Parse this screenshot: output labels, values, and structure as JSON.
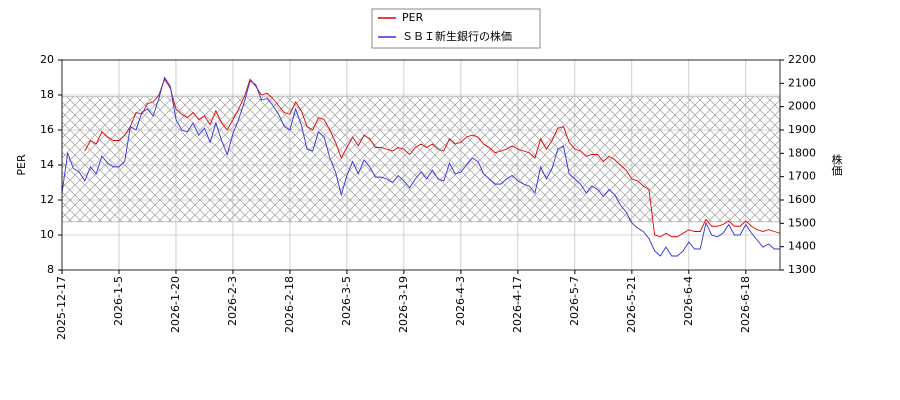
{
  "chart_data": {
    "type": "line",
    "ylabel": "PER",
    "y2label": "株価",
    "categories": [
      "2025-12-17",
      null,
      null,
      null,
      null,
      null,
      null,
      null,
      null,
      null,
      "2026-1-5",
      null,
      null,
      null,
      null,
      null,
      null,
      null,
      null,
      null,
      "2026-1-20",
      null,
      null,
      null,
      null,
      null,
      null,
      null,
      null,
      null,
      "2026-2-3",
      null,
      null,
      null,
      null,
      null,
      null,
      null,
      null,
      null,
      "2026-2-18",
      null,
      null,
      null,
      null,
      null,
      null,
      null,
      null,
      null,
      "2026-3-5",
      null,
      null,
      null,
      null,
      null,
      null,
      null,
      null,
      null,
      "2026-3-19",
      null,
      null,
      null,
      null,
      null,
      null,
      null,
      null,
      null,
      "2026-4-3",
      null,
      null,
      null,
      null,
      null,
      null,
      null,
      null,
      null,
      "2026-4-17",
      null,
      null,
      null,
      null,
      null,
      null,
      null,
      null,
      null,
      "2026-5-7",
      null,
      null,
      null,
      null,
      null,
      null,
      null,
      null,
      null,
      "2026-5-21",
      null,
      null,
      null,
      null,
      null,
      null,
      null,
      null,
      null,
      "2026-6-4",
      null,
      null,
      null,
      null,
      null,
      null,
      null,
      null,
      null,
      "2026-6-18",
      null,
      null,
      null,
      null,
      null,
      null
    ],
    "series": [
      {
        "name": "PER",
        "color": "#e00000",
        "axis": "y",
        "values": [
          null,
          null,
          null,
          null,
          14.8,
          15.4,
          15.2,
          15.9,
          15.6,
          15.4,
          15.4,
          15.7,
          16.2,
          17.0,
          16.9,
          17.5,
          17.6,
          18.0,
          18.9,
          18.4,
          17.2,
          16.9,
          16.7,
          17.0,
          16.6,
          16.8,
          16.3,
          17.1,
          16.4,
          16.0,
          16.6,
          17.2,
          17.9,
          18.9,
          18.5,
          18.0,
          18.1,
          17.8,
          17.4,
          17.0,
          16.9,
          17.6,
          17.1,
          16.2,
          16.0,
          16.7,
          16.6,
          16.0,
          15.3,
          14.4,
          15.0,
          15.6,
          15.1,
          15.7,
          15.5,
          15.0,
          15.0,
          14.9,
          14.8,
          15.0,
          14.9,
          14.6,
          15.0,
          15.2,
          15.0,
          15.2,
          14.9,
          14.8,
          15.5,
          15.2,
          15.3,
          15.6,
          15.7,
          15.6,
          15.2,
          15.0,
          14.7,
          14.8,
          14.9,
          15.1,
          14.9,
          14.8,
          14.7,
          14.4,
          15.5,
          14.9,
          15.4,
          16.1,
          16.2,
          15.3,
          14.9,
          14.8,
          14.5,
          14.6,
          14.6,
          14.2,
          14.5,
          14.3,
          14.0,
          13.7,
          13.2,
          13.1,
          12.8,
          12.6,
          10.0,
          9.9,
          10.1,
          9.9,
          9.9,
          10.1,
          10.3,
          10.2,
          10.2,
          10.9,
          10.5,
          10.5,
          10.6,
          10.8,
          10.5,
          10.5,
          10.8,
          10.5,
          10.3,
          10.2,
          10.3,
          10.2,
          10.1
        ]
      },
      {
        "name": "ＳＢＩ新生銀行の株価",
        "color": "#3030e0",
        "axis": "y2",
        "values": [
          1630,
          1802,
          1735,
          1720,
          1682,
          1742,
          1712,
          1788,
          1758,
          1742,
          1742,
          1765,
          1915,
          1900,
          1975,
          1990,
          1960,
          2035,
          2125,
          2088,
          1945,
          1900,
          1892,
          1930,
          1878,
          1908,
          1848,
          1930,
          1855,
          1795,
          1885,
          1945,
          2020,
          2110,
          2095,
          2028,
          2035,
          2005,
          1968,
          1915,
          1900,
          1990,
          1922,
          1818,
          1810,
          1892,
          1870,
          1780,
          1720,
          1622,
          1705,
          1765,
          1712,
          1772,
          1742,
          1698,
          1698,
          1690,
          1675,
          1705,
          1682,
          1652,
          1690,
          1720,
          1690,
          1728,
          1690,
          1682,
          1758,
          1712,
          1720,
          1750,
          1780,
          1765,
          1712,
          1690,
          1668,
          1668,
          1690,
          1705,
          1682,
          1668,
          1660,
          1630,
          1742,
          1690,
          1735,
          1818,
          1832,
          1712,
          1690,
          1668,
          1630,
          1660,
          1645,
          1615,
          1645,
          1622,
          1578,
          1548,
          1502,
          1480,
          1465,
          1435,
          1382,
          1360,
          1398,
          1360,
          1360,
          1382,
          1420,
          1390,
          1390,
          1502,
          1450,
          1442,
          1458,
          1495,
          1450,
          1450,
          1495,
          1458,
          1428,
          1398,
          1412,
          1390,
          1390
        ]
      }
    ],
    "band": [
      10.75,
      17.9
    ],
    "ylim": [
      8,
      20
    ],
    "yticks": [
      8,
      10,
      12,
      14,
      16,
      18,
      20
    ],
    "y2lim": [
      1300,
      2200
    ],
    "y2ticks": [
      1300,
      1400,
      1500,
      1600,
      1700,
      1800,
      1900,
      2000,
      2100,
      2200
    ],
    "grid": true,
    "legend": "top"
  }
}
